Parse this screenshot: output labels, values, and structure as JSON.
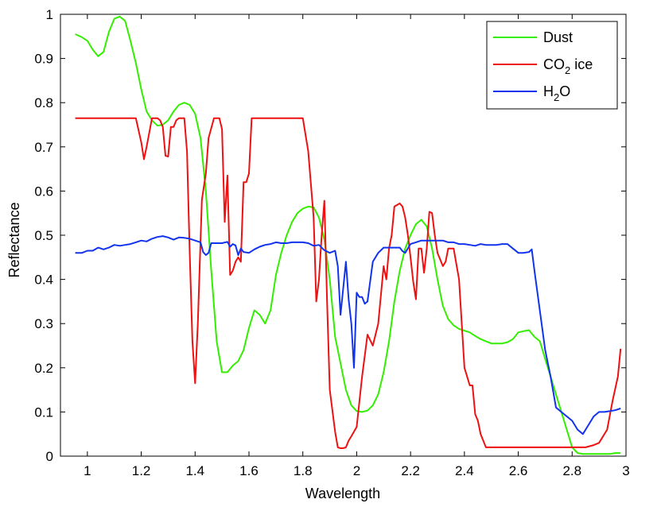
{
  "chart_data": {
    "type": "line",
    "title": "",
    "xlabel": "Wavelength",
    "ylabel": "Reflectance",
    "xlim": [
      0.9,
      3.0
    ],
    "ylim": [
      0,
      1.0
    ],
    "xticks": [
      1,
      1.2,
      1.4,
      1.6,
      1.8,
      2,
      2.2,
      2.4,
      2.6,
      2.8,
      3
    ],
    "xtick_labels": [
      "1",
      "1.2",
      "1.4",
      "1.6",
      "1.8",
      "2",
      "2.2",
      "2.4",
      "2.6",
      "2.8",
      "3"
    ],
    "yticks": [
      0,
      0.1,
      0.2,
      0.3,
      0.4,
      0.5,
      0.6,
      0.7,
      0.8,
      0.9,
      1
    ],
    "ytick_labels": [
      "0",
      "0.1",
      "0.2",
      "0.3",
      "0.4",
      "0.5",
      "0.6",
      "0.7",
      "0.8",
      "0.9",
      "1"
    ],
    "grid": false,
    "legend_position": "top-right",
    "series": [
      {
        "name": "Dust",
        "legend_parts": [
          "Dust"
        ],
        "color": "#33ee00",
        "x": [
          0.955,
          0.98,
          1.0,
          1.02,
          1.04,
          1.06,
          1.08,
          1.1,
          1.12,
          1.14,
          1.16,
          1.18,
          1.2,
          1.22,
          1.24,
          1.26,
          1.28,
          1.3,
          1.32,
          1.34,
          1.36,
          1.38,
          1.4,
          1.42,
          1.44,
          1.46,
          1.48,
          1.5,
          1.52,
          1.54,
          1.56,
          1.58,
          1.6,
          1.62,
          1.64,
          1.66,
          1.68,
          1.7,
          1.72,
          1.74,
          1.76,
          1.78,
          1.8,
          1.82,
          1.84,
          1.86,
          1.88,
          1.9,
          1.92,
          1.94,
          1.96,
          1.98,
          2.0,
          2.02,
          2.04,
          2.06,
          2.08,
          2.1,
          2.12,
          2.14,
          2.16,
          2.18,
          2.2,
          2.22,
          2.24,
          2.26,
          2.28,
          2.3,
          2.32,
          2.34,
          2.36,
          2.38,
          2.4,
          2.42,
          2.44,
          2.46,
          2.48,
          2.5,
          2.52,
          2.54,
          2.56,
          2.58,
          2.6,
          2.62,
          2.64,
          2.66,
          2.68,
          2.7,
          2.72,
          2.74,
          2.76,
          2.78,
          2.8,
          2.82,
          2.84,
          2.86,
          2.88,
          2.9,
          2.92,
          2.94,
          2.96,
          2.98
        ],
        "y": [
          0.955,
          0.948,
          0.94,
          0.92,
          0.905,
          0.915,
          0.96,
          0.99,
          0.995,
          0.985,
          0.94,
          0.89,
          0.83,
          0.78,
          0.76,
          0.748,
          0.75,
          0.76,
          0.78,
          0.795,
          0.8,
          0.795,
          0.775,
          0.72,
          0.6,
          0.42,
          0.26,
          0.19,
          0.19,
          0.205,
          0.215,
          0.24,
          0.29,
          0.33,
          0.32,
          0.3,
          0.33,
          0.41,
          0.46,
          0.5,
          0.53,
          0.55,
          0.56,
          0.565,
          0.563,
          0.54,
          0.49,
          0.4,
          0.27,
          0.21,
          0.15,
          0.115,
          0.102,
          0.1,
          0.103,
          0.115,
          0.14,
          0.19,
          0.26,
          0.35,
          0.42,
          0.47,
          0.5,
          0.525,
          0.535,
          0.52,
          0.47,
          0.4,
          0.34,
          0.31,
          0.296,
          0.288,
          0.284,
          0.28,
          0.272,
          0.265,
          0.26,
          0.255,
          0.255,
          0.255,
          0.258,
          0.265,
          0.28,
          0.283,
          0.285,
          0.27,
          0.26,
          0.22,
          0.18,
          0.14,
          0.1,
          0.06,
          0.02,
          0.007,
          0.005,
          0.005,
          0.005,
          0.005,
          0.005,
          0.005,
          0.007,
          0.007
        ]
      },
      {
        "name": "CO2 ice",
        "legend_parts": [
          "CO",
          "2",
          " ice"
        ],
        "color": "#ee1111",
        "x": [
          0.955,
          1.0,
          1.05,
          1.1,
          1.15,
          1.18,
          1.2,
          1.21,
          1.22,
          1.24,
          1.26,
          1.27,
          1.28,
          1.29,
          1.3,
          1.31,
          1.32,
          1.33,
          1.34,
          1.35,
          1.36,
          1.37,
          1.38,
          1.39,
          1.4,
          1.41,
          1.425,
          1.44,
          1.45,
          1.47,
          1.49,
          1.5,
          1.51,
          1.52,
          1.53,
          1.54,
          1.55,
          1.56,
          1.57,
          1.58,
          1.59,
          1.6,
          1.61,
          1.62,
          1.63,
          1.64,
          1.65,
          1.66,
          1.67,
          1.68,
          1.7,
          1.75,
          1.8,
          1.82,
          1.84,
          1.85,
          1.86,
          1.87,
          1.88,
          1.89,
          1.9,
          1.92,
          1.93,
          1.94,
          1.95,
          1.96,
          1.97,
          1.98,
          2.0,
          2.02,
          2.04,
          2.06,
          2.08,
          2.1,
          2.11,
          2.12,
          2.13,
          2.14,
          2.16,
          2.17,
          2.18,
          2.19,
          2.2,
          2.21,
          2.22,
          2.23,
          2.24,
          2.25,
          2.26,
          2.27,
          2.28,
          2.29,
          2.3,
          2.32,
          2.33,
          2.34,
          2.36,
          2.38,
          2.39,
          2.4,
          2.42,
          2.43,
          2.44,
          2.45,
          2.46,
          2.48,
          2.5,
          2.51,
          2.53,
          2.54,
          2.55,
          2.56,
          2.58,
          2.6,
          2.65,
          2.7,
          2.8,
          2.85,
          2.88,
          2.9,
          2.93,
          2.95,
          2.97,
          2.98
        ],
        "y": [
          0.765,
          0.765,
          0.765,
          0.765,
          0.765,
          0.765,
          0.71,
          0.672,
          0.7,
          0.765,
          0.765,
          0.76,
          0.745,
          0.68,
          0.678,
          0.745,
          0.745,
          0.76,
          0.765,
          0.765,
          0.765,
          0.69,
          0.46,
          0.26,
          0.165,
          0.3,
          0.58,
          0.64,
          0.72,
          0.765,
          0.765,
          0.74,
          0.53,
          0.635,
          0.41,
          0.42,
          0.44,
          0.45,
          0.44,
          0.62,
          0.62,
          0.64,
          0.765,
          0.765,
          0.765,
          0.765,
          0.765,
          0.765,
          0.765,
          0.765,
          0.765,
          0.765,
          0.765,
          0.69,
          0.54,
          0.35,
          0.4,
          0.5,
          0.578,
          0.35,
          0.15,
          0.055,
          0.02,
          0.018,
          0.018,
          0.02,
          0.035,
          0.045,
          0.066,
          0.18,
          0.275,
          0.25,
          0.3,
          0.43,
          0.4,
          0.47,
          0.5,
          0.565,
          0.572,
          0.565,
          0.54,
          0.5,
          0.45,
          0.395,
          0.355,
          0.47,
          0.47,
          0.415,
          0.47,
          0.553,
          0.55,
          0.5,
          0.46,
          0.43,
          0.44,
          0.47,
          0.47,
          0.4,
          0.3,
          0.2,
          0.16,
          0.16,
          0.095,
          0.08,
          0.05,
          0.02,
          0.02,
          0.02,
          0.02,
          0.02,
          0.02,
          0.02,
          0.02,
          0.02,
          0.02,
          0.02,
          0.02,
          0.02,
          0.025,
          0.03,
          0.06,
          0.125,
          0.18,
          0.243
        ]
      },
      {
        "name": "H2O",
        "legend_parts": [
          "H",
          "2",
          "O"
        ],
        "color": "#1133ee",
        "x": [
          0.955,
          0.98,
          1.0,
          1.02,
          1.04,
          1.06,
          1.08,
          1.1,
          1.12,
          1.14,
          1.16,
          1.18,
          1.2,
          1.22,
          1.24,
          1.26,
          1.28,
          1.3,
          1.32,
          1.34,
          1.36,
          1.38,
          1.4,
          1.42,
          1.43,
          1.44,
          1.45,
          1.46,
          1.48,
          1.5,
          1.52,
          1.53,
          1.54,
          1.55,
          1.56,
          1.57,
          1.58,
          1.6,
          1.62,
          1.64,
          1.66,
          1.68,
          1.7,
          1.72,
          1.74,
          1.76,
          1.78,
          1.8,
          1.82,
          1.84,
          1.86,
          1.88,
          1.9,
          1.92,
          1.93,
          1.94,
          1.95,
          1.96,
          1.97,
          1.98,
          1.99,
          2.0,
          2.01,
          2.02,
          2.03,
          2.04,
          2.06,
          2.08,
          2.1,
          2.12,
          2.14,
          2.16,
          2.17,
          2.18,
          2.2,
          2.22,
          2.24,
          2.26,
          2.28,
          2.3,
          2.32,
          2.34,
          2.36,
          2.38,
          2.4,
          2.42,
          2.44,
          2.46,
          2.48,
          2.5,
          2.52,
          2.54,
          2.56,
          2.58,
          2.6,
          2.62,
          2.64,
          2.65,
          2.66,
          2.7,
          2.72,
          2.74,
          2.76,
          2.8,
          2.82,
          2.84,
          2.86,
          2.88,
          2.9,
          2.92,
          2.94,
          2.96,
          2.98
        ],
        "y": [
          0.46,
          0.46,
          0.465,
          0.465,
          0.472,
          0.468,
          0.472,
          0.478,
          0.476,
          0.478,
          0.48,
          0.484,
          0.488,
          0.486,
          0.492,
          0.496,
          0.498,
          0.495,
          0.49,
          0.495,
          0.494,
          0.492,
          0.488,
          0.484,
          0.462,
          0.455,
          0.46,
          0.482,
          0.482,
          0.482,
          0.485,
          0.474,
          0.48,
          0.477,
          0.455,
          0.47,
          0.462,
          0.46,
          0.468,
          0.474,
          0.478,
          0.48,
          0.484,
          0.482,
          0.482,
          0.484,
          0.484,
          0.484,
          0.482,
          0.476,
          0.478,
          0.466,
          0.46,
          0.465,
          0.43,
          0.32,
          0.38,
          0.44,
          0.355,
          0.3,
          0.2,
          0.37,
          0.36,
          0.36,
          0.345,
          0.35,
          0.44,
          0.46,
          0.472,
          0.472,
          0.472,
          0.472,
          0.464,
          0.46,
          0.48,
          0.484,
          0.488,
          0.488,
          0.488,
          0.488,
          0.488,
          0.484,
          0.484,
          0.48,
          0.48,
          0.478,
          0.476,
          0.48,
          0.478,
          0.478,
          0.478,
          0.48,
          0.48,
          0.47,
          0.46,
          0.46,
          0.462,
          0.468,
          0.42,
          0.24,
          0.18,
          0.11,
          0.1,
          0.08,
          0.06,
          0.05,
          0.07,
          0.09,
          0.1,
          0.1,
          0.102,
          0.104,
          0.108
        ]
      }
    ]
  }
}
